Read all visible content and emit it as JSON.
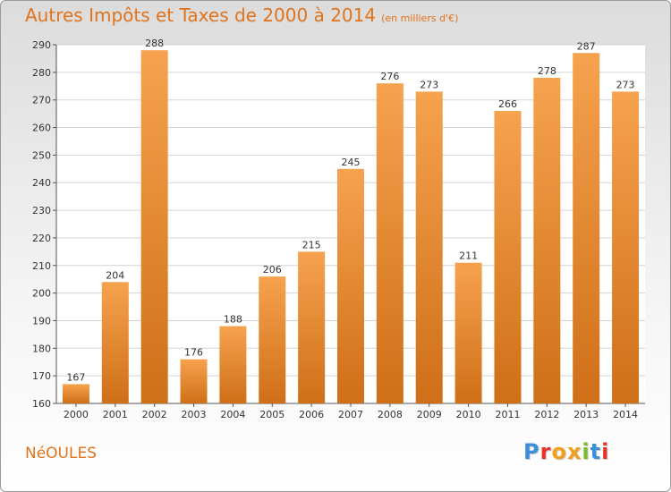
{
  "header": {
    "title": "Autres Impôts et Taxes de 2000 à 2014",
    "unit": "(en milliers d'€)"
  },
  "footer": {
    "town": "NéOULES",
    "logo_text": "Proxiti",
    "logo_colors": [
      "#3a8fd8",
      "#e8332a",
      "#f0a01c",
      "#f0a01c",
      "#7dbb2e",
      "#3a8fd8",
      "#e8332a"
    ]
  },
  "colors": {
    "bar_light": "#f6a24e",
    "bar_dark": "#cf6f18",
    "title": "#e0731b",
    "grid": "#d3d3d3"
  },
  "chart_data": {
    "type": "bar",
    "categories": [
      "2000",
      "2001",
      "2002",
      "2003",
      "2004",
      "2005",
      "2006",
      "2007",
      "2008",
      "2009",
      "2010",
      "2011",
      "2012",
      "2013",
      "2014"
    ],
    "values": [
      167,
      204,
      288,
      176,
      188,
      206,
      215,
      245,
      276,
      273,
      211,
      266,
      278,
      287,
      273
    ],
    "ylim": [
      160,
      290
    ],
    "yticks": [
      160,
      170,
      180,
      190,
      200,
      210,
      220,
      230,
      240,
      250,
      260,
      270,
      280,
      290
    ],
    "grid": true,
    "data_labels": true,
    "legend": "none"
  }
}
